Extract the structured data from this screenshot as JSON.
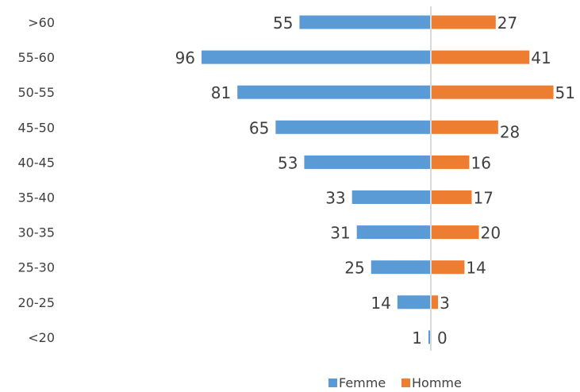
{
  "chart_data": {
    "type": "bar",
    "orientation": "horizontal-butterfly",
    "title": "",
    "xlabel": "",
    "ylabel": "",
    "categories": [
      ">60",
      "55-60",
      "50-55",
      "45-50",
      "40-45",
      "35-40",
      "30-35",
      "25-30",
      "20-25",
      "<20"
    ],
    "series": [
      {
        "name": "Femme",
        "color": "#5B9BD5",
        "values": [
          55,
          96,
          81,
          65,
          53,
          33,
          31,
          25,
          14,
          1
        ]
      },
      {
        "name": "Homme",
        "color": "#ED7D31",
        "values": [
          27,
          41,
          51,
          28,
          16,
          17,
          20,
          14,
          3,
          0
        ]
      }
    ],
    "center_axis_color": "#D9D9D9",
    "grid": false,
    "legend_position": "bottom-right"
  }
}
